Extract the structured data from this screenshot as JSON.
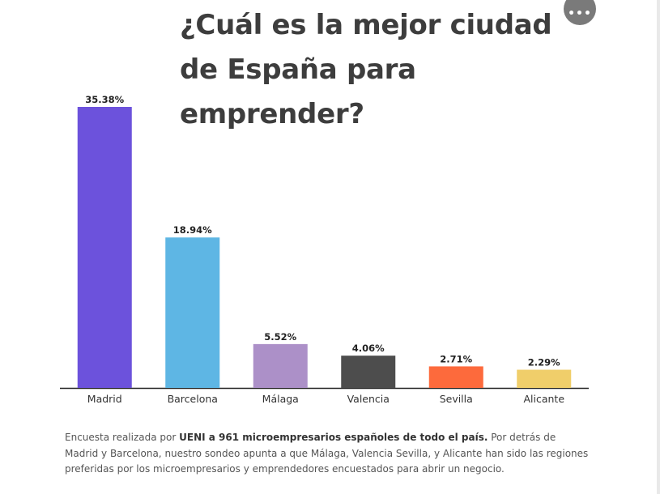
{
  "more_button": {
    "label": "•••"
  },
  "footnote": {
    "prefix": "Encuesta realizada por ",
    "bold": "UENI a 961 microempresarios españoles de todo el país.",
    "suffix": " Por detrás de Madrid y Barcelona, nuestro sondeo apunta a que Málaga, Valencia Sevilla, y Alicante han sido las regiones preferidas por los microempresarios y emprendedores encuestados para abrir un negocio."
  },
  "chart_data": {
    "type": "bar",
    "title": "¿Cuál es la mejor ciudad de España para emprender?",
    "categories": [
      "Madrid",
      "Barcelona",
      "Málaga",
      "Valencia",
      "Sevilla",
      "Alicante"
    ],
    "values": [
      35.38,
      18.94,
      5.52,
      4.06,
      2.71,
      2.29
    ],
    "data_labels": [
      "35.38%",
      "18.94%",
      "5.52%",
      "4.06%",
      "2.71%",
      "2.29%"
    ],
    "colors": [
      "#6c52dc",
      "#5eb6e4",
      "#ac90c8",
      "#4d4d4d",
      "#fd6a3c",
      "#f0ce6a"
    ],
    "ylim": [
      0,
      35.38
    ],
    "grid": false,
    "legend": "none",
    "xlabel": "",
    "ylabel": ""
  }
}
